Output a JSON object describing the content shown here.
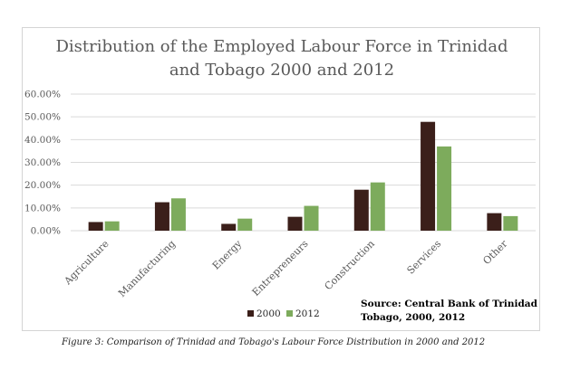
{
  "chart_data": {
    "type": "bar",
    "title_lines": [
      "Distribution of the Employed Labour Force in Trinidad",
      "and Tobago 2000 and 2012"
    ],
    "categories": [
      "Agriculture",
      "Manufacturing",
      "Energy",
      "Entrepreneurs",
      "Construction",
      "Services",
      "Other"
    ],
    "series": [
      {
        "name": "2000",
        "color": "#3b1f1a",
        "values": [
          3.8,
          12.5,
          3.0,
          6.1,
          18.0,
          47.8,
          7.7
        ]
      },
      {
        "name": "2012",
        "color": "#7dab5c",
        "values": [
          4.1,
          14.2,
          5.3,
          10.9,
          21.2,
          37.0,
          6.4
        ]
      }
    ],
    "ylim": [
      0,
      60
    ],
    "yticks": [
      0,
      10,
      20,
      30,
      40,
      50,
      60
    ],
    "ytick_labels": [
      "0.00%",
      "10.00%",
      "20.00%",
      "30.00%",
      "40.00%",
      "50.00%",
      "60.00%"
    ],
    "grid": true,
    "legend_position": "bottom",
    "source_lines": [
      "Source: Central Bank of Trinidad and",
      "Tobago, 2000, 2012"
    ]
  },
  "caption": "Figure 3: Comparison of Trinidad and Tobago's Labour Force Distribution in 2000 and 2012"
}
